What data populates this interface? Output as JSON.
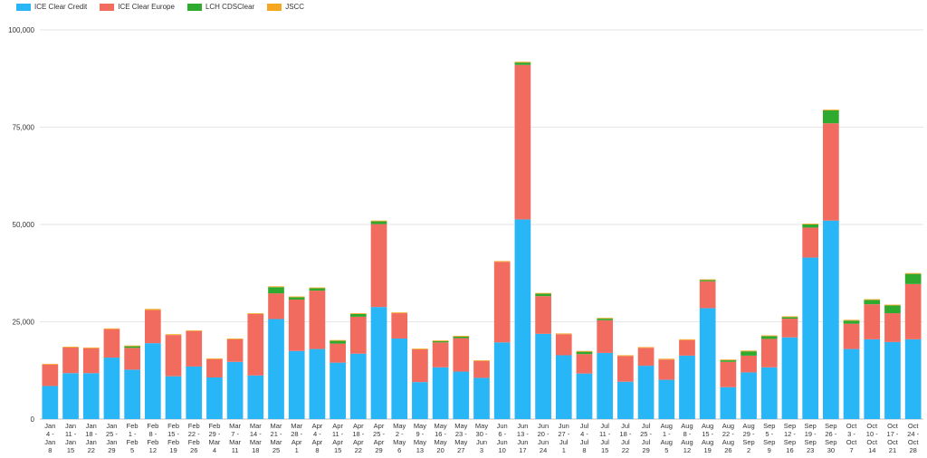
{
  "chart_data": {
    "type": "bar",
    "stacked": true,
    "legend_position": "top-left",
    "grid": true,
    "ylim": [
      0,
      100000
    ],
    "y_ticks": [
      "0",
      "25,000",
      "50,000",
      "75,000",
      "100,000"
    ],
    "y_tick_values": [
      0,
      25000,
      50000,
      75000,
      100000
    ],
    "categories": [
      [
        "Jan",
        "4 -",
        "Jan",
        "8"
      ],
      [
        "Jan",
        "11 -",
        "Jan",
        "15"
      ],
      [
        "Jan",
        "18 -",
        "Jan",
        "22"
      ],
      [
        "Jan",
        "25 -",
        "Jan",
        "29"
      ],
      [
        "Feb",
        "1 -",
        "Feb",
        "5"
      ],
      [
        "Feb",
        "8 -",
        "Feb",
        "12"
      ],
      [
        "Feb",
        "15 -",
        "Feb",
        "19"
      ],
      [
        "Feb",
        "22 -",
        "Feb",
        "26"
      ],
      [
        "Feb",
        "29 -",
        "Mar",
        "4"
      ],
      [
        "Mar",
        "7 -",
        "Mar",
        "11"
      ],
      [
        "Mar",
        "14 -",
        "Mar",
        "18"
      ],
      [
        "Mar",
        "21 -",
        "Mar",
        "25"
      ],
      [
        "Mar",
        "28 -",
        "Apr",
        "1"
      ],
      [
        "Apr",
        "4 -",
        "Apr",
        "8"
      ],
      [
        "Apr",
        "11 -",
        "Apr",
        "15"
      ],
      [
        "Apr",
        "18 -",
        "Apr",
        "22"
      ],
      [
        "Apr",
        "25 -",
        "Apr",
        "29"
      ],
      [
        "May",
        "2 -",
        "May",
        "6"
      ],
      [
        "May",
        "9 -",
        "May",
        "13"
      ],
      [
        "May",
        "16 -",
        "May",
        "20"
      ],
      [
        "May",
        "23 -",
        "May",
        "27"
      ],
      [
        "May",
        "30 -",
        "Jun",
        "3"
      ],
      [
        "Jun",
        "6 -",
        "Jun",
        "10"
      ],
      [
        "Jun",
        "13 -",
        "Jun",
        "17"
      ],
      [
        "Jun",
        "20 -",
        "Jun",
        "24"
      ],
      [
        "Jun",
        "27 -",
        "Jul",
        "1"
      ],
      [
        "Jul",
        "4 -",
        "Jul",
        "8"
      ],
      [
        "Jul",
        "11 -",
        "Jul",
        "15"
      ],
      [
        "Jul",
        "18 -",
        "Jul",
        "22"
      ],
      [
        "Jul",
        "25 -",
        "Jul",
        "29"
      ],
      [
        "Aug",
        "1 -",
        "Aug",
        "5"
      ],
      [
        "Aug",
        "8 -",
        "Aug",
        "12"
      ],
      [
        "Aug",
        "15 -",
        "Aug",
        "19"
      ],
      [
        "Aug",
        "22 -",
        "Aug",
        "26"
      ],
      [
        "Aug",
        "29 -",
        "Sep",
        "2"
      ],
      [
        "Sep",
        "5 -",
        "Sep",
        "9"
      ],
      [
        "Sep",
        "12 -",
        "Sep",
        "16"
      ],
      [
        "Sep",
        "19 -",
        "Sep",
        "23"
      ],
      [
        "Sep",
        "26 -",
        "Sep",
        "30"
      ],
      [
        "Oct",
        "3 -",
        "Oct",
        "7"
      ],
      [
        "Oct",
        "10 -",
        "Oct",
        "14"
      ],
      [
        "Oct",
        "17 -",
        "Oct",
        "21"
      ],
      [
        "Oct",
        "24 -",
        "Oct",
        "28"
      ]
    ],
    "series": [
      {
        "name": "ICE Clear Credit",
        "color": "#29b6f6",
        "values": [
          8500,
          11800,
          11800,
          15800,
          12700,
          19500,
          11000,
          13500,
          10700,
          14700,
          11200,
          25700,
          17500,
          18000,
          14500,
          16800,
          28800,
          20700,
          9500,
          13300,
          12200,
          10600,
          19700,
          51300,
          21900,
          16400,
          11700,
          17000,
          9600,
          13700,
          10100,
          16300,
          28500,
          8200,
          12000,
          13300,
          21000,
          41500,
          51000,
          18000,
          20500,
          19800,
          20500
        ]
      },
      {
        "name": "ICE Clear Europe",
        "color": "#f26b5f",
        "values": [
          5500,
          6600,
          6400,
          7300,
          5600,
          8500,
          10600,
          9100,
          4700,
          5800,
          15800,
          6600,
          13200,
          15000,
          4900,
          9500,
          21300,
          6500,
          8400,
          6400,
          8600,
          4300,
          20700,
          39700,
          9700,
          5400,
          5000,
          8400,
          6600,
          4600,
          5200,
          4000,
          6900,
          6500,
          4300,
          7300,
          4800,
          7700,
          25000,
          6500,
          9000,
          7400,
          14200
        ]
      },
      {
        "name": "LCH CDSClear",
        "color": "#2eaa2e",
        "values": [
          0,
          0,
          0,
          0,
          400,
          0,
          0,
          0,
          0,
          0,
          0,
          1600,
          600,
          600,
          700,
          700,
          700,
          0,
          0,
          300,
          400,
          0,
          0,
          600,
          600,
          0,
          600,
          400,
          0,
          0,
          0,
          0,
          300,
          400,
          1100,
          700,
          400,
          800,
          3300,
          800,
          1100,
          2000,
          2600
        ]
      },
      {
        "name": "JSCC",
        "color": "#f5a623",
        "values": [
          200,
          200,
          200,
          200,
          200,
          300,
          200,
          200,
          200,
          200,
          200,
          200,
          200,
          200,
          200,
          200,
          200,
          200,
          200,
          200,
          200,
          200,
          200,
          200,
          200,
          200,
          200,
          200,
          200,
          200,
          200,
          200,
          200,
          200,
          200,
          200,
          200,
          200,
          200,
          200,
          200,
          200,
          200
        ]
      }
    ]
  }
}
